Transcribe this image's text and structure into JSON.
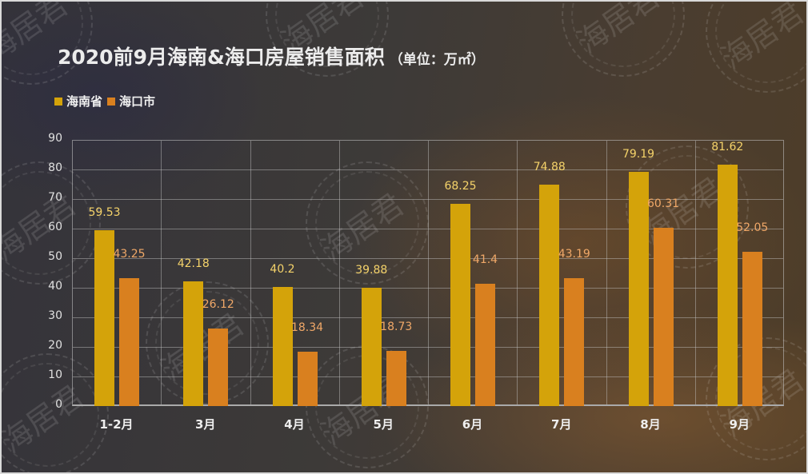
{
  "title": "2020前9月海南&海口房屋销售面积",
  "unit_label": "（单位：万㎡）",
  "watermark": "海居君",
  "legend": [
    {
      "label": "海南省",
      "color": "#d4a30a"
    },
    {
      "label": "海口市",
      "color": "#d9801f"
    }
  ],
  "y_ticks": [
    "0",
    "10",
    "20",
    "30",
    "40",
    "50",
    "60",
    "70",
    "80",
    "90"
  ],
  "chart_data": {
    "type": "bar",
    "title": "2020前9月海南&海口房屋销售面积（单位：万㎡）",
    "xlabel": "",
    "ylabel": "万㎡",
    "ylim": [
      0,
      90
    ],
    "grid": true,
    "legend_position": "top-left",
    "categories": [
      "1-2月",
      "3月",
      "4月",
      "5月",
      "6月",
      "7月",
      "8月",
      "9月"
    ],
    "series": [
      {
        "name": "海南省",
        "color": "#d4a30a",
        "label_color": "#f5d36a",
        "values": [
          59.53,
          42.18,
          40.2,
          39.88,
          68.25,
          74.88,
          79.19,
          81.62
        ],
        "labels": [
          "59.53",
          "42.18",
          "40.2",
          "39.88",
          "68.25",
          "74.88",
          "79.19",
          "81.62"
        ]
      },
      {
        "name": "海口市",
        "color": "#d9801f",
        "label_color": "#f0a868",
        "values": [
          43.25,
          26.12,
          18.34,
          18.73,
          41.4,
          43.19,
          60.31,
          52.05
        ],
        "labels": [
          "43.25",
          "26.12",
          "18.34",
          "18.73",
          "41.4",
          "43.19",
          "60.31",
          "52.05"
        ]
      }
    ]
  }
}
